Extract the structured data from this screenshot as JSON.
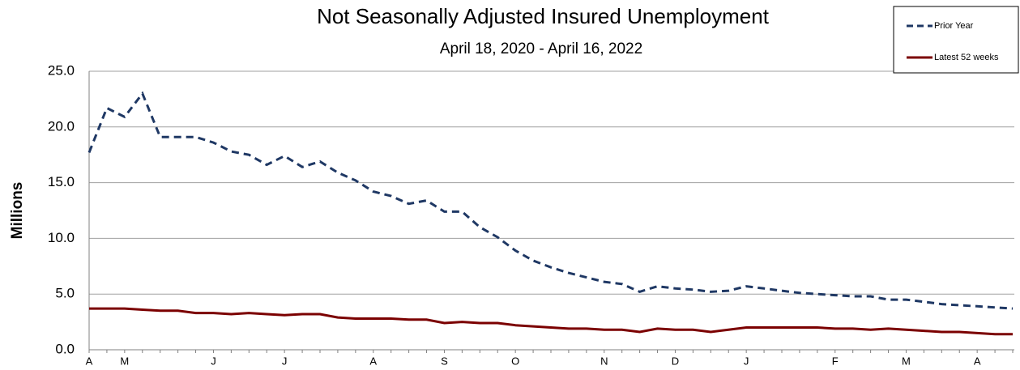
{
  "chart_data": {
    "type": "line",
    "title": "Not Seasonally Adjusted Insured Unemployment",
    "subtitle": "April 18, 2020 - April 16, 2022",
    "y_label": "Millions",
    "categories": [
      "A",
      null,
      "M",
      null,
      null,
      null,
      null,
      "J",
      null,
      null,
      null,
      "J",
      null,
      null,
      null,
      null,
      "A",
      null,
      null,
      null,
      "S",
      null,
      null,
      null,
      "O",
      null,
      null,
      null,
      null,
      "N",
      null,
      null,
      null,
      "D",
      null,
      null,
      null,
      "J",
      null,
      null,
      null,
      null,
      "F",
      null,
      null,
      null,
      "M",
      null,
      null,
      null,
      "A",
      null,
      null
    ],
    "series": [
      {
        "name": "Prior Year",
        "color": "#1f3864",
        "dashed": true,
        "values": [
          17.7,
          21.7,
          20.9,
          23.0,
          19.1,
          19.1,
          19.1,
          18.6,
          17.8,
          17.5,
          16.6,
          17.4,
          16.4,
          16.9,
          15.9,
          15.2,
          14.2,
          13.8,
          13.1,
          13.4,
          12.4,
          12.4,
          11.0,
          10.1,
          8.9,
          8.0,
          7.4,
          6.9,
          6.5,
          6.1,
          5.9,
          5.2,
          5.7,
          5.5,
          5.4,
          5.2,
          5.3,
          5.7,
          5.5,
          5.3,
          5.1,
          5.0,
          4.9,
          4.8,
          4.8,
          4.5,
          4.5,
          4.3,
          4.1,
          4.0,
          3.9,
          3.8,
          3.7
        ]
      },
      {
        "name": "Latest 52 weeks",
        "color": "#7b0000",
        "dashed": false,
        "values": [
          3.7,
          3.7,
          3.7,
          3.6,
          3.5,
          3.5,
          3.3,
          3.3,
          3.2,
          3.3,
          3.2,
          3.1,
          3.2,
          3.2,
          2.9,
          2.8,
          2.8,
          2.8,
          2.7,
          2.7,
          2.4,
          2.5,
          2.4,
          2.4,
          2.2,
          2.1,
          2.0,
          1.9,
          1.9,
          1.8,
          1.8,
          1.6,
          1.9,
          1.8,
          1.8,
          1.6,
          1.8,
          2.0,
          2.0,
          2.0,
          2.0,
          2.0,
          1.9,
          1.9,
          1.8,
          1.9,
          1.8,
          1.7,
          1.6,
          1.6,
          1.5,
          1.4,
          1.4
        ]
      }
    ],
    "ylim": [
      0,
      25
    ],
    "yticks": [
      {
        "value": 0,
        "label": "0.0"
      },
      {
        "value": 5,
        "label": "5.0"
      },
      {
        "value": 10,
        "label": "10.0"
      },
      {
        "value": 15,
        "label": "15.0"
      },
      {
        "value": 20,
        "label": "20.0"
      },
      {
        "value": 25,
        "label": "25.0"
      }
    ],
    "grid": true,
    "legend_position": "top-right"
  }
}
